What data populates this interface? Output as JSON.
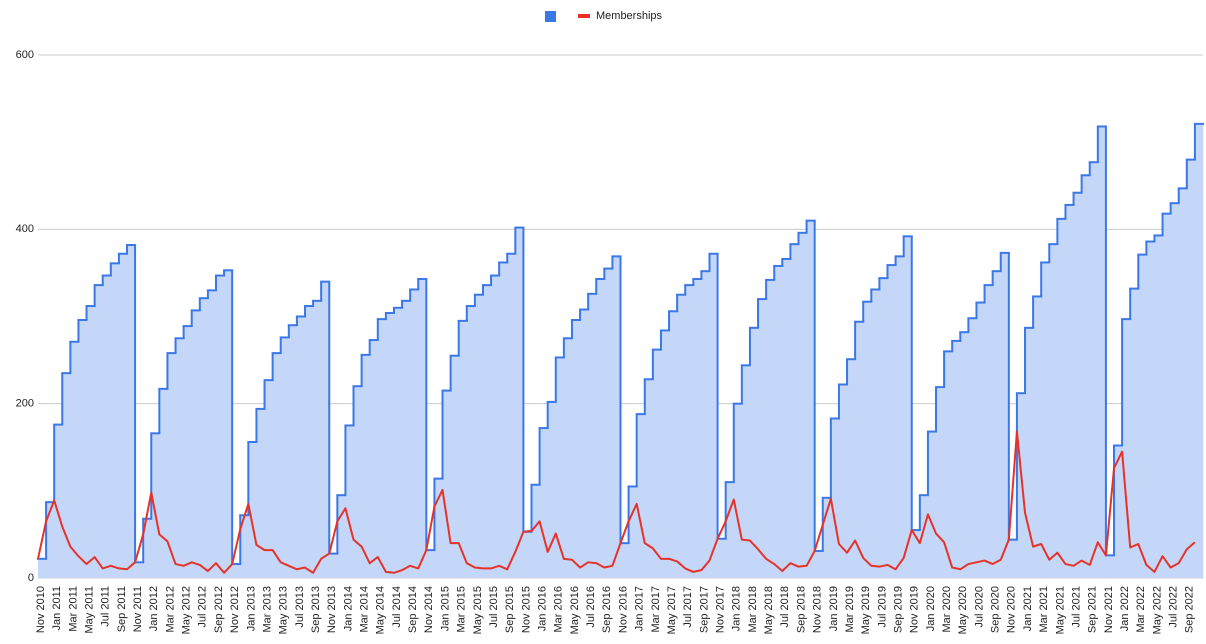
{
  "chart_data": {
    "type": "step-area-line",
    "categories": [
      "Nov 2010",
      null,
      "Jan 2011",
      null,
      "Mar 2011",
      null,
      "May 2011",
      null,
      "Jul 2011",
      null,
      "Sep 2011",
      null,
      "Nov 2011",
      null,
      "Jan 2012",
      null,
      "Mar 2012",
      null,
      "May 2012",
      null,
      "Jul 2012",
      null,
      "Sep 2012",
      null,
      "Nov 2012",
      null,
      "Jan 2013",
      null,
      "Mar 2013",
      null,
      "May 2013",
      null,
      "Jul 2013",
      null,
      "Sep 2013",
      null,
      "Nov 2013",
      null,
      "Jan 2014",
      null,
      "Mar 2014",
      null,
      "May 2014",
      null,
      "Jul 2014",
      null,
      "Sep 2014",
      null,
      "Nov 2014",
      null,
      "Jan 2015",
      null,
      "Mar 2015",
      null,
      "May 2015",
      null,
      "Jul 2015",
      null,
      "Sep 2015",
      null,
      "Nov 2015",
      null,
      "Jan 2016",
      null,
      "Mar 2016",
      null,
      "May 2016",
      null,
      "Jul 2016",
      null,
      "Sep 2016",
      null,
      "Nov 2016",
      null,
      "Jan 2017",
      null,
      "Mar 2017",
      null,
      "May 2017",
      null,
      "Jul 2017",
      null,
      "Sep 2017",
      null,
      "Nov 2017",
      null,
      "Jan 2018",
      null,
      "Mar 2018",
      null,
      "May 2018",
      null,
      "Jul 2018",
      null,
      "Sep 2018",
      null,
      "Nov 2018",
      null,
      "Jan 2019",
      null,
      "Mar 2019",
      null,
      "May 2019",
      null,
      "Jul 2019",
      null,
      "Sep 2019",
      null,
      "Nov 2019",
      null,
      "Jan 2020",
      null,
      "Mar 2020",
      null,
      "May 2020",
      null,
      "Jul 2020",
      null,
      "Sep 2020",
      null,
      "Nov 2020",
      null,
      "Jan 2021",
      null,
      "Mar 2021",
      null,
      "May 2021",
      null,
      "Jul 2021",
      null,
      "Sep 2021",
      null,
      "Nov 2021",
      null,
      "Jan 2022",
      null,
      "Mar 2022",
      null,
      "May 2022",
      null,
      "Jul 2022",
      null,
      "Sep 2022",
      null
    ],
    "series": [
      {
        "color": "#3b78e7",
        "fill": "#c5d7f8",
        "style": "step-area",
        "values": [
          22,
          87,
          176,
          235,
          271,
          296,
          312,
          336,
          347,
          361,
          372,
          382,
          18,
          68,
          166,
          217,
          258,
          275,
          289,
          307,
          321,
          330,
          347,
          353,
          16,
          72,
          156,
          194,
          227,
          258,
          276,
          290,
          300,
          312,
          318,
          340,
          28,
          95,
          175,
          220,
          256,
          273,
          297,
          304,
          310,
          318,
          331,
          343,
          32,
          114,
          215,
          255,
          295,
          312,
          325,
          336,
          347,
          362,
          372,
          402,
          53,
          107,
          172,
          202,
          253,
          275,
          296,
          308,
          326,
          343,
          355,
          369,
          40,
          105,
          188,
          228,
          262,
          284,
          306,
          325,
          336,
          343,
          352,
          372,
          45,
          110,
          200,
          244,
          287,
          320,
          342,
          358,
          366,
          383,
          396,
          410,
          31,
          92,
          183,
          222,
          251,
          294,
          317,
          331,
          344,
          359,
          369,
          392,
          55,
          95,
          168,
          219,
          260,
          272,
          282,
          298,
          316,
          336,
          352,
          373,
          44,
          212,
          287,
          323,
          362,
          383,
          412,
          428,
          442,
          462,
          477,
          518,
          26,
          152,
          297,
          332,
          371,
          386,
          393,
          418,
          430,
          447,
          480,
          521
        ]
      },
      {
        "name": "Memberships",
        "color": "#e5332a",
        "style": "line",
        "values": [
          22,
          65,
          89,
          59,
          36,
          25,
          16,
          24,
          11,
          14,
          11,
          10,
          18,
          50,
          98,
          50,
          42,
          16,
          14,
          18,
          15,
          8,
          17,
          6,
          16,
          56,
          85,
          38,
          32,
          32,
          18,
          14,
          10,
          12,
          6,
          22,
          28,
          65,
          80,
          44,
          36,
          17,
          24,
          7,
          6,
          9,
          14,
          11,
          32,
          82,
          101,
          40,
          40,
          17,
          12,
          11,
          11,
          14,
          10,
          30,
          53,
          54,
          65,
          30,
          51,
          22,
          21,
          12,
          18,
          17,
          12,
          14,
          40,
          65,
          85,
          40,
          34,
          22,
          22,
          19,
          11,
          7,
          9,
          20,
          45,
          65,
          90,
          44,
          43,
          33,
          22,
          16,
          8,
          17,
          13,
          14,
          31,
          61,
          91,
          39,
          29,
          43,
          23,
          14,
          13,
          15,
          10,
          23,
          55,
          40,
          73,
          51,
          41,
          12,
          10,
          16,
          18,
          20,
          16,
          21,
          44,
          168,
          75,
          36,
          39,
          21,
          29,
          16,
          14,
          20,
          15,
          41,
          26,
          126,
          145,
          35,
          39,
          15,
          7,
          25,
          12,
          17,
          33,
          41
        ]
      }
    ],
    "ylim": [
      0,
      600
    ],
    "yticks": [
      0,
      200,
      400,
      600
    ],
    "grid": true,
    "legend": "top"
  }
}
